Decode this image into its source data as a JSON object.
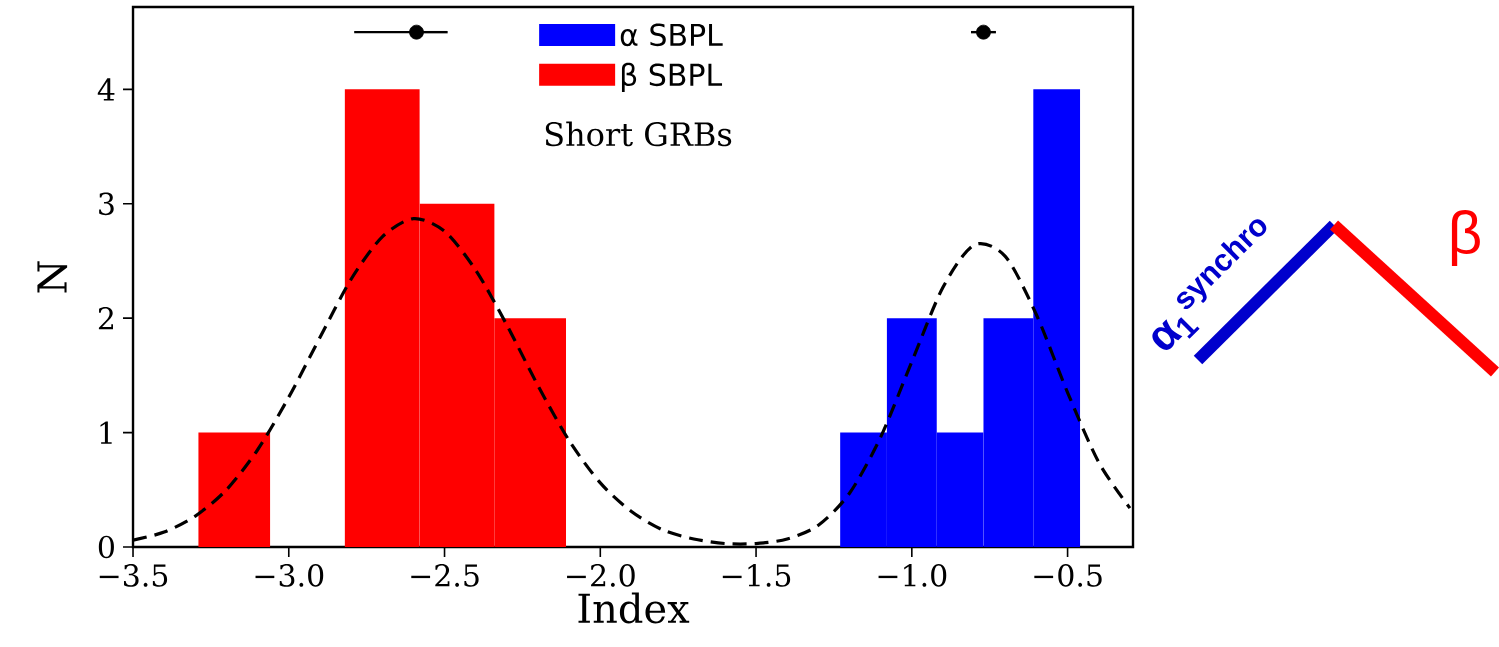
{
  "chart_data": {
    "type": "histogram",
    "xlabel": "Index",
    "ylabel": "N",
    "xlim": [
      -3.5,
      -0.29
    ],
    "ylim": [
      0,
      4.72
    ],
    "xticks": [
      {
        "value": -3.5,
        "label": "−3.5"
      },
      {
        "value": -3.0,
        "label": "−3.0"
      },
      {
        "value": -2.5,
        "label": "−2.5"
      },
      {
        "value": -2.0,
        "label": "−2.0"
      },
      {
        "value": -1.5,
        "label": "−1.5"
      },
      {
        "value": -1.0,
        "label": "−1.0"
      },
      {
        "value": -0.5,
        "label": "−0.5"
      }
    ],
    "yticks": [
      0,
      1,
      2,
      3,
      4
    ],
    "legend": "top",
    "grid": false,
    "series": [
      {
        "name": "α SBPL",
        "color": "#0000ff",
        "bins": [
          -1.23,
          -1.08,
          -0.92,
          -0.77,
          -0.61,
          -0.46
        ],
        "values": [
          1,
          2,
          1,
          2,
          4
        ]
      },
      {
        "name": "β SBPL",
        "color": "#ff0000",
        "bins": [
          -3.29,
          -3.06,
          -2.82,
          -2.58,
          -2.34,
          -2.11
        ],
        "values": [
          1,
          0,
          4,
          3,
          2
        ]
      },
      {
        "type": "line",
        "color": "#000000",
        "line_style": "dashed",
        "x": [
          -3.5,
          -3.4,
          -3.3,
          -3.2,
          -3.1,
          -3.0,
          -2.9,
          -2.8,
          -2.7,
          -2.6,
          -2.5,
          -2.4,
          -2.3,
          -2.2,
          -2.1,
          -2.0,
          -1.9,
          -1.8,
          -1.7,
          -1.6,
          -1.5,
          -1.4,
          -1.3,
          -1.2,
          -1.1,
          -1.0,
          -0.9,
          -0.8,
          -0.7,
          -0.6,
          -0.5,
          -0.4,
          -0.3
        ],
        "values": [
          0.06,
          0.13,
          0.27,
          0.5,
          0.85,
          1.31,
          1.83,
          2.34,
          2.71,
          2.87,
          2.76,
          2.42,
          1.94,
          1.41,
          0.93,
          0.56,
          0.31,
          0.15,
          0.07,
          0.03,
          0.03,
          0.07,
          0.19,
          0.47,
          0.96,
          1.62,
          2.27,
          2.64,
          2.54,
          2.03,
          1.35,
          0.74,
          0.34
        ]
      },
      {
        "type": "scatter",
        "color": "#000000",
        "marker": "circle",
        "x": [
          -2.59,
          -0.77
        ],
        "values": [
          4.5,
          4.5
        ],
        "xerrors": [
          [
            -2.79,
            -2.49
          ],
          [
            -0.81,
            -0.73
          ]
        ]
      }
    ],
    "annotations": [
      "Short GRBs",
      "α$_{1}$$^{synchro}$",
      "β"
    ]
  }
}
